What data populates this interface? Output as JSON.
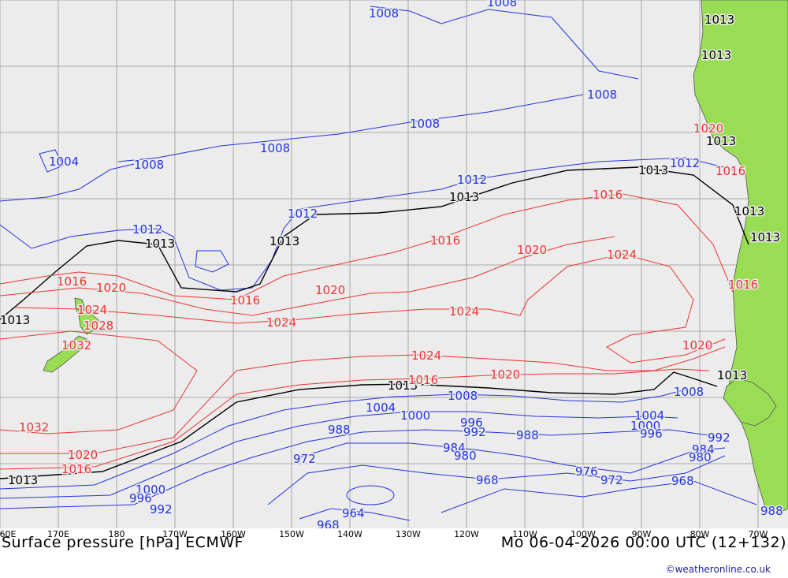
{
  "title": "Surface pressure [hPa] ECMWF",
  "valid_time": "Mo 06-04-2026 00:00 UTC (12+132)",
  "credit": "©weatheronline.co.uk",
  "lon_labels": [
    "60E",
    "170E",
    "180",
    "170W",
    "160W",
    "150W",
    "140W",
    "130W",
    "120W",
    "110W",
    "100W",
    "90W",
    "80W",
    "70W"
  ],
  "colors": {
    "ocean": "#ececec",
    "land": "#99dd55",
    "grid": "#a8a8a8",
    "low_isobar": "#2233dd",
    "ref_isobar": "#000000",
    "high_isobar": "#ee3333"
  },
  "isobar_labels": {
    "blue": [
      "1008",
      "1008",
      "1008",
      "1008",
      "1008",
      "1004",
      "1008",
      "1012",
      "1012",
      "1012",
      "1012",
      "1008",
      "1008",
      "1004",
      "1000",
      "996",
      "992",
      "988",
      "988",
      "984",
      "980",
      "976",
      "972",
      "972",
      "968",
      "968",
      "968",
      "964",
      "1000",
      "996",
      "992",
      "1004",
      "1000",
      "996",
      "992",
      "984",
      "980",
      "988"
    ],
    "black": [
      "1013",
      "1013",
      "1013",
      "1013",
      "1013",
      "1013",
      "1013",
      "1013",
      "1013",
      "1013",
      "1013",
      "1013",
      "1013"
    ],
    "red": [
      "1016",
      "1016",
      "1016",
      "1020",
      "1020",
      "1020",
      "1024",
      "1024",
      "1024",
      "1024",
      "1020",
      "1020",
      "1024",
      "1028",
      "1032",
      "1032",
      "1016",
      "1020",
      "1016",
      "1016",
      "1020",
      "1016",
      "1016"
    ]
  }
}
